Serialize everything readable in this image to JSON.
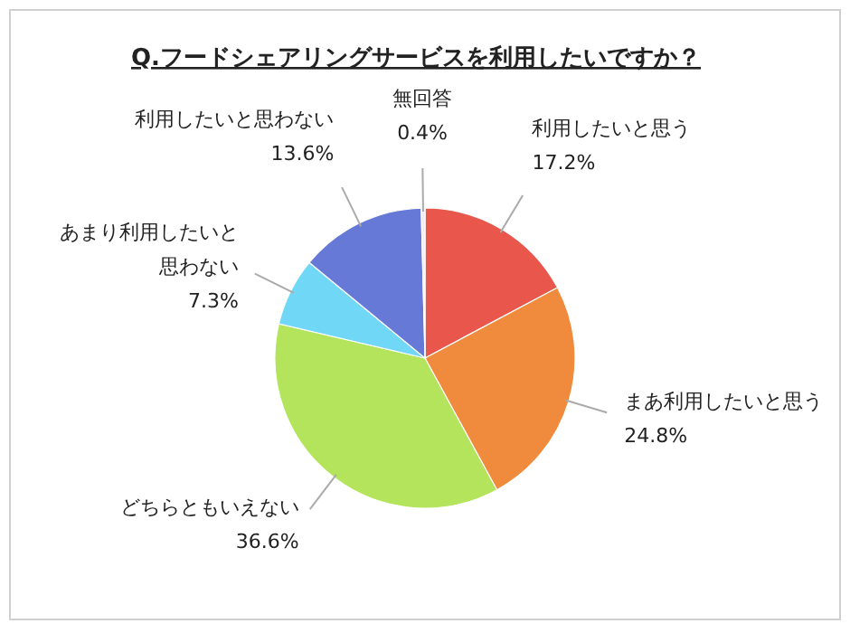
{
  "chart_data": {
    "type": "pie",
    "title": "Q.フードシェアリングサービスを利用したいですか？",
    "categories": [
      "利用したいと思う",
      "まあ利用したいと思う",
      "どちらともいえない",
      "あまり利用したいと思わない",
      "利用したいと思わない",
      "無回答"
    ],
    "values": [
      17.2,
      24.8,
      36.6,
      7.3,
      13.6,
      0.4
    ],
    "value_labels": [
      "17.2%",
      "24.8%",
      "36.6%",
      "7.3%",
      "13.6%",
      "0.4%"
    ],
    "colors": [
      "#e8564c",
      "#f08a3c",
      "#b4e45c",
      "#70d8f6",
      "#6679d6",
      "#eeeeee"
    ]
  }
}
